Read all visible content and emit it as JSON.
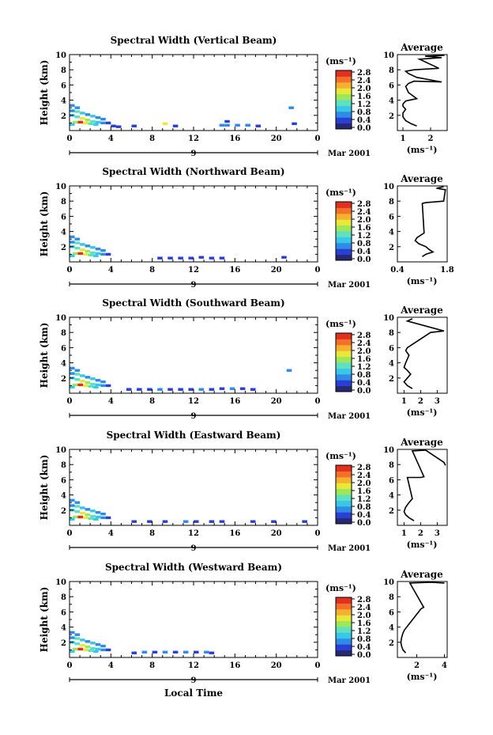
{
  "figure": {
    "xlabel": "Local Time",
    "date_label": "9",
    "month_label": "Mar 2001",
    "colorbar_unit": "(ms⁻¹)",
    "colorbar_ticks": [
      "0.0",
      "0.4",
      "0.8",
      "1.2",
      "1.6",
      "2.0",
      "2.4",
      "2.8"
    ],
    "avg_title": "Average",
    "avg_xlabel": "(ms⁻¹)",
    "colors": {
      "ramp": [
        "#282872",
        "#2a3fd6",
        "#2f8be6",
        "#39c7e8",
        "#5fe0c0",
        "#9ee65a",
        "#e8e83a",
        "#f5b030",
        "#f2702a",
        "#e03020"
      ]
    }
  },
  "chart_data": [
    {
      "type": "heatmap",
      "title": "Spectral Width (Vertical Beam)",
      "ylabel": "Height (km)",
      "xlim": [
        0,
        24
      ],
      "ylim": [
        0,
        10
      ],
      "xticks": [
        "0",
        "4",
        "8",
        "12",
        "16",
        "20",
        "0"
      ],
      "yticks": [
        "2",
        "4",
        "6",
        "8",
        "10"
      ],
      "cells": [
        [
          0,
          3.3,
          0.6
        ],
        [
          0.5,
          3.0,
          0.7
        ],
        [
          0,
          2.6,
          0.8
        ],
        [
          0.5,
          2.5,
          1.2
        ],
        [
          1.0,
          2.3,
          0.9
        ],
        [
          1.5,
          2.1,
          0.8
        ],
        [
          2.0,
          1.9,
          0.9
        ],
        [
          2.5,
          1.7,
          0.7
        ],
        [
          3.0,
          1.5,
          0.6
        ],
        [
          0,
          2.0,
          1.0
        ],
        [
          0.5,
          1.8,
          1.4
        ],
        [
          1.0,
          1.6,
          2.0
        ],
        [
          1.5,
          1.4,
          1.6
        ],
        [
          2.0,
          1.2,
          1.3
        ],
        [
          2.5,
          1.1,
          1.0
        ],
        [
          3.0,
          1.0,
          0.8
        ],
        [
          3.5,
          1.0,
          0.5
        ],
        [
          0.3,
          1.1,
          1.5
        ],
        [
          0.8,
          1.1,
          2.8
        ],
        [
          1.3,
          1.0,
          1.8
        ],
        [
          1.8,
          0.9,
          1.2
        ],
        [
          0,
          0.8,
          1.0
        ],
        [
          2.3,
          0.8,
          0.9
        ],
        [
          4.0,
          0.6,
          0.4
        ],
        [
          4.5,
          0.5,
          0.3
        ],
        [
          6.0,
          0.6,
          0.5
        ],
        [
          9.0,
          0.9,
          2.0
        ],
        [
          10.0,
          0.6,
          0.3
        ],
        [
          14.5,
          0.7,
          0.7
        ],
        [
          15.0,
          0.7,
          0.8
        ],
        [
          16.0,
          0.7,
          0.6
        ],
        [
          17.0,
          0.7,
          0.7
        ],
        [
          18.0,
          0.6,
          0.5
        ],
        [
          21.5,
          0.9,
          0.4
        ],
        [
          21.2,
          3.0,
          0.8
        ],
        [
          15.0,
          1.2,
          0.4
        ]
      ]
    },
    {
      "type": "heatmap",
      "title": "Spectral Width (Northward Beam)",
      "ylabel": "Height (km)",
      "xlim": [
        0,
        24
      ],
      "ylim": [
        0,
        10
      ],
      "xticks": [
        "0",
        "4",
        "8",
        "12",
        "16",
        "20",
        "0"
      ],
      "yticks": [
        "2",
        "4",
        "6",
        "8",
        "10"
      ],
      "cells": [
        [
          0,
          3.3,
          0.6
        ],
        [
          0.5,
          3.0,
          0.7
        ],
        [
          0,
          2.6,
          0.8
        ],
        [
          0.5,
          2.5,
          1.2
        ],
        [
          1.0,
          2.3,
          0.9
        ],
        [
          1.5,
          2.1,
          0.8
        ],
        [
          2.0,
          1.9,
          0.9
        ],
        [
          2.5,
          1.7,
          0.7
        ],
        [
          3.0,
          1.5,
          0.6
        ],
        [
          0,
          2.0,
          1.0
        ],
        [
          0.5,
          1.8,
          1.4
        ],
        [
          1.0,
          1.6,
          2.0
        ],
        [
          1.5,
          1.4,
          1.6
        ],
        [
          2.0,
          1.2,
          1.3
        ],
        [
          2.5,
          1.1,
          1.0
        ],
        [
          3.0,
          1.0,
          0.8
        ],
        [
          3.5,
          1.0,
          0.5
        ],
        [
          0.3,
          1.1,
          1.5
        ],
        [
          0.8,
          1.1,
          2.8
        ],
        [
          1.3,
          1.0,
          1.8
        ],
        [
          1.8,
          0.9,
          1.2
        ],
        [
          0,
          0.8,
          1.0
        ],
        [
          2.3,
          0.8,
          0.9
        ],
        [
          8.5,
          0.5,
          0.5
        ],
        [
          9.5,
          0.5,
          0.4
        ],
        [
          10.5,
          0.5,
          0.5
        ],
        [
          11.5,
          0.5,
          0.4
        ],
        [
          12.5,
          0.6,
          0.5
        ],
        [
          13.5,
          0.5,
          0.4
        ],
        [
          14.5,
          0.5,
          0.5
        ],
        [
          20.5,
          0.6,
          0.4
        ]
      ]
    },
    {
      "type": "heatmap",
      "title": "Spectral Width (Southward Beam)",
      "ylabel": "Height (km)",
      "xlim": [
        0,
        24
      ],
      "ylim": [
        0,
        10
      ],
      "xticks": [
        "0",
        "4",
        "8",
        "12",
        "16",
        "20",
        "0"
      ],
      "yticks": [
        "2",
        "4",
        "6",
        "8",
        "10"
      ],
      "cells": [
        [
          0,
          3.3,
          0.6
        ],
        [
          0.5,
          3.0,
          0.7
        ],
        [
          0,
          2.6,
          0.8
        ],
        [
          0.5,
          2.5,
          1.2
        ],
        [
          1.0,
          2.3,
          0.9
        ],
        [
          1.5,
          2.1,
          0.8
        ],
        [
          2.0,
          1.9,
          0.9
        ],
        [
          2.5,
          1.7,
          0.7
        ],
        [
          3.0,
          1.5,
          0.6
        ],
        [
          0,
          2.0,
          1.0
        ],
        [
          0.5,
          1.8,
          1.4
        ],
        [
          1.0,
          1.6,
          2.0
        ],
        [
          1.5,
          1.4,
          1.6
        ],
        [
          2.0,
          1.2,
          1.3
        ],
        [
          2.5,
          1.1,
          1.0
        ],
        [
          3.0,
          1.0,
          0.8
        ],
        [
          3.5,
          1.0,
          0.5
        ],
        [
          0.3,
          1.1,
          1.5
        ],
        [
          0.8,
          1.1,
          2.8
        ],
        [
          1.3,
          1.0,
          1.8
        ],
        [
          1.8,
          0.9,
          1.2
        ],
        [
          0,
          0.8,
          1.0
        ],
        [
          2.3,
          0.8,
          0.9
        ],
        [
          5.5,
          0.5,
          0.5
        ],
        [
          6.5,
          0.5,
          0.4
        ],
        [
          7.5,
          0.5,
          0.5
        ],
        [
          8.5,
          0.5,
          0.6
        ],
        [
          9.5,
          0.5,
          0.5
        ],
        [
          10.5,
          0.5,
          0.4
        ],
        [
          11.5,
          0.5,
          0.5
        ],
        [
          12.5,
          0.5,
          0.6
        ],
        [
          13.5,
          0.5,
          0.4
        ],
        [
          14.5,
          0.6,
          0.5
        ],
        [
          15.5,
          0.6,
          0.6
        ],
        [
          16.5,
          0.6,
          0.5
        ],
        [
          17.5,
          0.5,
          0.4
        ],
        [
          21.0,
          3.0,
          0.8
        ]
      ]
    },
    {
      "type": "heatmap",
      "title": "Spectral Width (Eastward Beam)",
      "ylabel": "Height (km)",
      "xlim": [
        0,
        24
      ],
      "ylim": [
        0,
        10
      ],
      "xticks": [
        "0",
        "4",
        "8",
        "12",
        "16",
        "20",
        "0"
      ],
      "yticks": [
        "2",
        "4",
        "6",
        "8",
        "10"
      ],
      "cells": [
        [
          0,
          3.3,
          0.6
        ],
        [
          0.5,
          3.0,
          0.7
        ],
        [
          0,
          2.6,
          0.8
        ],
        [
          0.5,
          2.5,
          1.2
        ],
        [
          1.0,
          2.3,
          0.9
        ],
        [
          1.5,
          2.1,
          0.8
        ],
        [
          2.0,
          1.9,
          0.9
        ],
        [
          2.5,
          1.7,
          0.7
        ],
        [
          3.0,
          1.5,
          0.6
        ],
        [
          0,
          2.0,
          1.0
        ],
        [
          0.5,
          1.8,
          1.4
        ],
        [
          1.0,
          1.6,
          2.0
        ],
        [
          1.5,
          1.4,
          1.6
        ],
        [
          2.0,
          1.2,
          1.3
        ],
        [
          2.5,
          1.1,
          1.0
        ],
        [
          3.0,
          1.0,
          0.8
        ],
        [
          3.5,
          1.0,
          0.5
        ],
        [
          0.3,
          1.1,
          1.5
        ],
        [
          0.8,
          1.1,
          2.8
        ],
        [
          1.3,
          1.0,
          1.8
        ],
        [
          1.8,
          0.9,
          1.2
        ],
        [
          0,
          0.8,
          1.0
        ],
        [
          2.3,
          0.8,
          0.9
        ],
        [
          6.0,
          0.5,
          0.5
        ],
        [
          7.5,
          0.5,
          0.4
        ],
        [
          9.0,
          0.5,
          0.5
        ],
        [
          11.0,
          0.5,
          0.6
        ],
        [
          12.0,
          0.5,
          0.4
        ],
        [
          13.5,
          0.5,
          0.5
        ],
        [
          14.5,
          0.5,
          0.4
        ],
        [
          17.5,
          0.5,
          0.5
        ],
        [
          19.5,
          0.5,
          0.4
        ],
        [
          22.5,
          0.5,
          0.4
        ]
      ]
    },
    {
      "type": "heatmap",
      "title": "Spectral Width (Westward Beam)",
      "ylabel": "Height (km)",
      "xlim": [
        0,
        24
      ],
      "ylim": [
        0,
        10
      ],
      "xticks": [
        "0",
        "4",
        "8",
        "12",
        "16",
        "20",
        "0"
      ],
      "yticks": [
        "2",
        "4",
        "6",
        "8",
        "10"
      ],
      "cells": [
        [
          0,
          3.3,
          0.6
        ],
        [
          0.5,
          3.0,
          0.7
        ],
        [
          0,
          2.6,
          0.8
        ],
        [
          0.5,
          2.5,
          1.2
        ],
        [
          1.0,
          2.3,
          0.9
        ],
        [
          1.5,
          2.1,
          0.8
        ],
        [
          2.0,
          1.9,
          0.9
        ],
        [
          2.5,
          1.7,
          0.7
        ],
        [
          3.0,
          1.5,
          0.6
        ],
        [
          0,
          2.0,
          1.0
        ],
        [
          0.5,
          1.8,
          1.4
        ],
        [
          1.0,
          1.6,
          2.0
        ],
        [
          1.5,
          1.4,
          1.6
        ],
        [
          2.0,
          1.2,
          1.3
        ],
        [
          2.5,
          1.1,
          1.0
        ],
        [
          3.0,
          1.0,
          0.8
        ],
        [
          3.5,
          1.0,
          0.5
        ],
        [
          0.3,
          1.1,
          1.5
        ],
        [
          0.8,
          1.1,
          2.8
        ],
        [
          1.3,
          1.0,
          1.8
        ],
        [
          1.8,
          0.9,
          1.2
        ],
        [
          0,
          0.8,
          1.0
        ],
        [
          2.3,
          0.8,
          0.9
        ],
        [
          6.0,
          0.6,
          0.5
        ],
        [
          7.0,
          0.7,
          0.6
        ],
        [
          8.0,
          0.7,
          0.5
        ],
        [
          9.0,
          0.7,
          0.6
        ],
        [
          10.0,
          0.7,
          0.5
        ],
        [
          11.0,
          0.7,
          0.6
        ],
        [
          12.0,
          0.7,
          0.5
        ],
        [
          13.0,
          0.7,
          0.6
        ],
        [
          13.5,
          0.6,
          0.5
        ]
      ]
    },
    {
      "type": "line",
      "title": "Average",
      "xlabel": "(ms⁻¹)",
      "xlim": [
        0.8,
        2.6
      ],
      "ylim": [
        0,
        10
      ],
      "xticks": [
        {
          "v": 1,
          "t": "1"
        },
        {
          "v": 2,
          "t": "2"
        }
      ],
      "yticks": [
        "2",
        "4",
        "6",
        "8",
        "10"
      ],
      "x": [
        1.5,
        1.3,
        1.1,
        1.0,
        1.0,
        1.1,
        1.0,
        1.0,
        1.1,
        1.5,
        1.2,
        1.1,
        1.2,
        1.4,
        2.4,
        1.5,
        1.2,
        1.1,
        1.4,
        2.3,
        1.6,
        2.4,
        1.8,
        2.5
      ],
      "y": [
        0.6,
        0.9,
        1.3,
        1.8,
        2.3,
        2.8,
        3.2,
        3.5,
        3.9,
        4.2,
        5.0,
        5.8,
        6.2,
        6.5,
        6.4,
        7.0,
        7.5,
        7.8,
        8.0,
        8.2,
        9.4,
        9.6,
        9.8,
        9.9
      ]
    },
    {
      "type": "line",
      "title": "Average",
      "xlabel": "(ms⁻¹)",
      "xlim": [
        0.4,
        1.8
      ],
      "ylim": [
        0,
        10
      ],
      "xticks": [
        {
          "v": 0.4,
          "t": "0.4"
        },
        {
          "v": 1.8,
          "t": "1.8"
        }
      ],
      "yticks": [
        "2",
        "4",
        "6",
        "8",
        "10"
      ],
      "x": [
        1.1,
        1.2,
        1.4,
        1.3,
        1.2,
        1.0,
        0.9,
        0.95,
        1.05,
        1.15,
        1.1,
        1.2,
        1.7,
        1.75,
        1.5,
        1.7
      ],
      "y": [
        0.7,
        1.0,
        1.3,
        1.6,
        2.0,
        2.4,
        2.8,
        3.2,
        3.5,
        3.8,
        7.7,
        7.8,
        8.0,
        9.5,
        9.7,
        9.9
      ]
    },
    {
      "type": "line",
      "title": "Average",
      "xlabel": "(ms⁻¹)",
      "xlim": [
        0.6,
        3.6
      ],
      "ylim": [
        0,
        10
      ],
      "xticks": [
        {
          "v": 1,
          "t": "1"
        },
        {
          "v": 2,
          "t": "2"
        },
        {
          "v": 3,
          "t": "3"
        }
      ],
      "yticks": [
        "2",
        "4",
        "6",
        "8",
        "10"
      ],
      "x": [
        1.5,
        1.2,
        1.0,
        1.2,
        1.4,
        1.2,
        1.0,
        1.1,
        1.3,
        1.1,
        1.2,
        2.6,
        3.4,
        1.2,
        1.5
      ],
      "y": [
        0.6,
        1.0,
        1.5,
        2.0,
        2.5,
        3.0,
        3.4,
        4.0,
        5.0,
        5.6,
        6.0,
        8.0,
        8.2,
        9.5,
        9.8
      ]
    },
    {
      "type": "line",
      "title": "Average",
      "xlabel": "(ms⁻¹)",
      "xlim": [
        0.6,
        3.6
      ],
      "ylim": [
        0,
        10
      ],
      "xticks": [
        {
          "v": 1,
          "t": "1"
        },
        {
          "v": 2,
          "t": "2"
        },
        {
          "v": 3,
          "t": "3"
        }
      ],
      "yticks": [
        "2",
        "4",
        "6",
        "8",
        "10"
      ],
      "x": [
        1.6,
        1.3,
        1.1,
        1.0,
        1.1,
        1.3,
        1.5,
        1.2,
        2.0,
        2.2,
        1.5,
        2.3,
        3.4,
        3.5
      ],
      "y": [
        0.6,
        1.0,
        1.4,
        1.8,
        2.4,
        3.0,
        3.5,
        6.3,
        6.3,
        6.4,
        9.8,
        9.9,
        8.3,
        7.9
      ]
    },
    {
      "type": "line",
      "title": "Average",
      "xlabel": "(ms⁻¹)",
      "xlim": [
        0.6,
        4.2
      ],
      "ylim": [
        0,
        10
      ],
      "xticks": [
        {
          "v": 2,
          "t": "2"
        },
        {
          "v": 4,
          "t": "4"
        }
      ],
      "yticks": [
        "2",
        "4",
        "6",
        "8",
        "10"
      ],
      "x": [
        1.2,
        1.0,
        0.9,
        0.85,
        0.9,
        1.0,
        1.1,
        2.3,
        2.5,
        1.5,
        3.0,
        4.0
      ],
      "y": [
        0.6,
        1.0,
        1.5,
        2.0,
        2.6,
        3.2,
        3.6,
        6.4,
        6.6,
        9.8,
        9.9,
        9.8
      ]
    }
  ]
}
